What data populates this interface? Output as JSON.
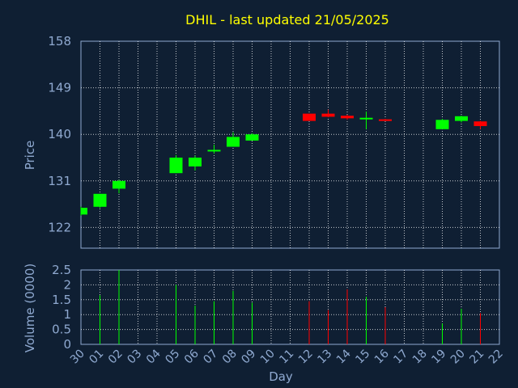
{
  "chart_data": {
    "type": "candlestick",
    "title": "DHIL - last updated 21/05/2025",
    "xlabel": "Day",
    "price_panel": {
      "ylabel": "Price",
      "ylim": [
        118,
        158
      ],
      "yticks": [
        "122",
        "131",
        "140",
        "149",
        "158"
      ]
    },
    "volume_panel": {
      "ylabel": "Volume (0000)",
      "ylim": [
        0,
        2.5
      ],
      "yticks": [
        "0",
        "0.5",
        "1",
        "1.5",
        "2",
        "2.5"
      ]
    },
    "x_tick_labels": [
      "30",
      "01",
      "02",
      "03",
      "04",
      "05",
      "06",
      "07",
      "08",
      "09",
      "10",
      "11",
      "12",
      "13",
      "14",
      "15",
      "16",
      "17",
      "18",
      "19",
      "20",
      "21",
      "22"
    ],
    "candles": [
      {
        "day": "30",
        "open": 124.5,
        "high": 126.0,
        "low": 124.3,
        "close": 125.8,
        "direction": "up"
      },
      {
        "day": "01",
        "open": 126.0,
        "high": 128.5,
        "low": 125.8,
        "close": 128.5,
        "direction": "up"
      },
      {
        "day": "02",
        "open": 129.5,
        "high": 131.2,
        "low": 128.6,
        "close": 131.0,
        "direction": "up"
      },
      {
        "day": "05",
        "open": 132.5,
        "high": 136.0,
        "low": 132.5,
        "close": 135.5,
        "direction": "up"
      },
      {
        "day": "06",
        "open": 133.8,
        "high": 135.9,
        "low": 133.0,
        "close": 135.5,
        "direction": "up"
      },
      {
        "day": "07",
        "open": 137.0,
        "high": 138.0,
        "low": 136.3,
        "close": 137.0,
        "direction": "flat"
      },
      {
        "day": "08",
        "open": 137.6,
        "high": 140.4,
        "low": 137.6,
        "close": 139.5,
        "direction": "up"
      },
      {
        "day": "09",
        "open": 138.8,
        "high": 140.2,
        "low": 138.8,
        "close": 140.0,
        "direction": "up"
      },
      {
        "day": "12",
        "open": 144.0,
        "high": 144.0,
        "low": 142.6,
        "close": 142.6,
        "direction": "down"
      },
      {
        "day": "13",
        "open": 144.0,
        "high": 144.8,
        "low": 143.3,
        "close": 143.4,
        "direction": "down"
      },
      {
        "day": "14",
        "open": 143.6,
        "high": 143.8,
        "low": 142.8,
        "close": 143.1,
        "direction": "down"
      },
      {
        "day": "15",
        "open": 143.2,
        "high": 144.4,
        "low": 141.0,
        "close": 143.2,
        "direction": "flat"
      },
      {
        "day": "16",
        "open": 142.9,
        "high": 143.0,
        "low": 142.6,
        "close": 142.7,
        "direction": "down"
      },
      {
        "day": "19",
        "open": 141.0,
        "high": 143.0,
        "low": 141.0,
        "close": 142.8,
        "direction": "up"
      },
      {
        "day": "20",
        "open": 142.6,
        "high": 143.6,
        "low": 142.3,
        "close": 143.5,
        "direction": "up"
      },
      {
        "day": "21",
        "open": 142.5,
        "high": 142.6,
        "low": 141.0,
        "close": 141.6,
        "direction": "down"
      }
    ],
    "volumes": [
      {
        "day": "01",
        "value": 1.65,
        "direction": "up"
      },
      {
        "day": "02",
        "value": 2.5,
        "direction": "up"
      },
      {
        "day": "05",
        "value": 2.0,
        "direction": "up"
      },
      {
        "day": "06",
        "value": 1.3,
        "direction": "up"
      },
      {
        "day": "07",
        "value": 1.45,
        "direction": "up"
      },
      {
        "day": "08",
        "value": 1.8,
        "direction": "up"
      },
      {
        "day": "09",
        "value": 1.4,
        "direction": "up"
      },
      {
        "day": "12",
        "value": 1.45,
        "direction": "down"
      },
      {
        "day": "13",
        "value": 1.15,
        "direction": "down"
      },
      {
        "day": "14",
        "value": 1.85,
        "direction": "down"
      },
      {
        "day": "15",
        "value": 1.6,
        "direction": "up"
      },
      {
        "day": "16",
        "value": 1.25,
        "direction": "down"
      },
      {
        "day": "19",
        "value": 0.7,
        "direction": "up"
      },
      {
        "day": "20",
        "value": 1.2,
        "direction": "up"
      },
      {
        "day": "21",
        "value": 1.05,
        "direction": "down"
      }
    ],
    "colors": {
      "background": "#0f1f33",
      "frame": "#8fa9d0",
      "grid": "#ffffff",
      "up": "#00ff00",
      "down": "#ff0000",
      "axis_text": "#8fa9d0",
      "title": "#ffff00"
    },
    "grid": true
  }
}
